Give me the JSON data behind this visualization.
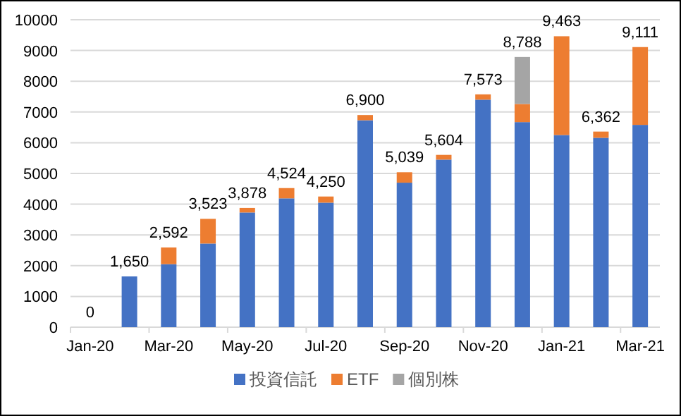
{
  "chart_data": {
    "type": "bar",
    "stacked": true,
    "categories": [
      "Jan-20",
      null,
      "Mar-20",
      null,
      "May-20",
      null,
      "Jul-20",
      null,
      "Sep-20",
      null,
      "Nov-20",
      null,
      "Jan-21",
      null,
      "Mar-21"
    ],
    "series": [
      {
        "name": "投資信託",
        "color": "#4472c4",
        "values": [
          0,
          1650,
          2050,
          2720,
          3730,
          4190,
          4050,
          6730,
          4700,
          5450,
          7400,
          6670,
          6250,
          6160,
          6580
        ]
      },
      {
        "name": "ETF",
        "color": "#ed7d31",
        "values": [
          0,
          0,
          542,
          803,
          148,
          334,
          200,
          170,
          339,
          154,
          173,
          590,
          3213,
          202,
          2531
        ]
      },
      {
        "name": "個別株",
        "color": "#a5a5a5",
        "values": [
          null,
          null,
          null,
          null,
          null,
          null,
          null,
          null,
          null,
          null,
          null,
          1528,
          null,
          null,
          null
        ]
      }
    ],
    "totals": [
      "0",
      "1,650",
      "2,592",
      "3,523",
      "3,878",
      "4,524",
      "4,250",
      "6,900",
      "5,039",
      "5,604",
      "7,573",
      "8,788",
      "9,463",
      "6,362",
      "9,111"
    ],
    "ylim": [
      0,
      10000
    ],
    "yticks": [
      0,
      1000,
      2000,
      3000,
      4000,
      5000,
      6000,
      7000,
      8000,
      9000,
      10000
    ],
    "grid": "y",
    "legend": "bottom"
  }
}
